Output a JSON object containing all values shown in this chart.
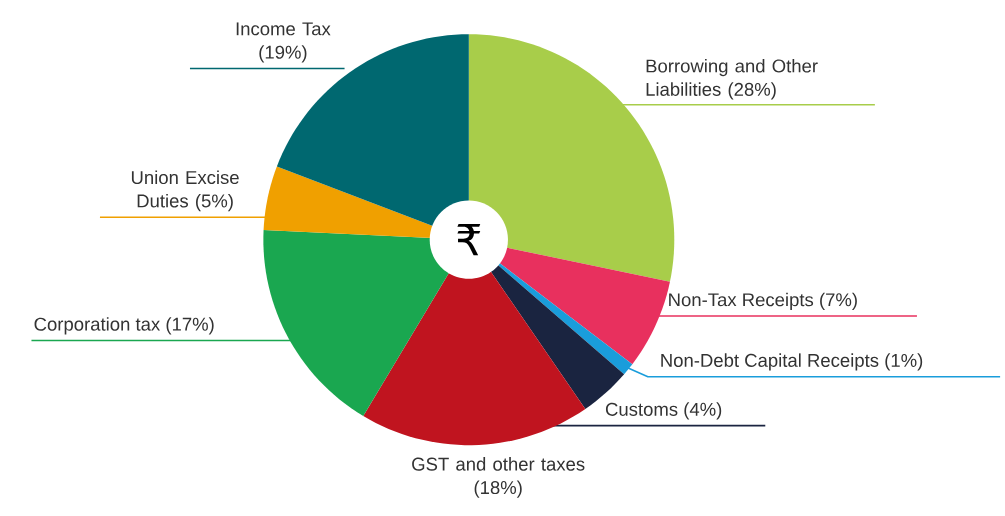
{
  "chart_data": {
    "type": "pie",
    "categories": [
      "Borrowing and Other Liabilities",
      "Non-Tax Receipts",
      "Non-Debt Capital Receipts",
      "Customs",
      "GST and other taxes",
      "Corporation tax",
      "Union Excise Duties",
      "Income Tax"
    ],
    "values": [
      28,
      7,
      1,
      4,
      18,
      17,
      5,
      19
    ],
    "value_labels": [
      "(28%)",
      "(7%)",
      "(1%)",
      "(4%)",
      "(18%)",
      "(17%)",
      "(5%)",
      "(19%)"
    ],
    "colors": [
      "#a8cd4a",
      "#e8305e",
      "#1a9ddb",
      "#1a2440",
      "#c0141f",
      "#1aa750",
      "#f0a000",
      "#006870"
    ],
    "annotations": [
      "₹"
    ],
    "legend": false
  }
}
